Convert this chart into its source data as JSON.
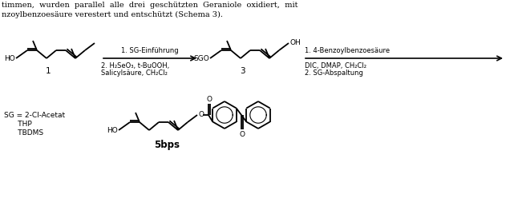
{
  "bg_color": "#ffffff",
  "fig_width": 6.41,
  "fig_height": 2.58,
  "dpi": 100,
  "top_text_lines": [
    "timmen,  wurden  parallel  alle  drei  geschützten  Geraniole  oxidiert,  mit",
    "nzoylbenzoesäure verestert und entschützt (Schema 3)."
  ],
  "label1": "1",
  "label3": "3",
  "label5bps": "5bps",
  "arrow1_label_line1": "1. SG-Einführung",
  "arrow1_label_line2": "2. H₂SeO₃, t-BuOOH,",
  "arrow1_label_line3": "Salicylsäure, CH₂Cl₂",
  "arrow2_label_line1": "1. 4-Benzoylbenzoesäure",
  "arrow2_label_line2": "DIC, DMAP, CH₂Cl₂",
  "arrow2_label_line3": "2. SG-Abspaltung",
  "sg_legend_line1": "SG = 2-Cl-Acetat",
  "sg_legend_line2": "      THP",
  "sg_legend_line3": "      TBDMS",
  "black": "#000000",
  "text_fontsize": 6.5,
  "label_fontsize": 7.5,
  "bond_lw": 1.3
}
